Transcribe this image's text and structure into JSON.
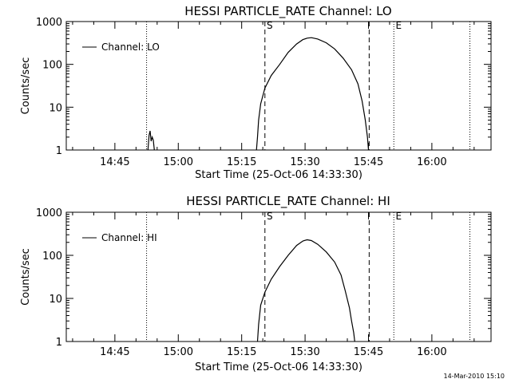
{
  "footer_stamp": "14-Mar-2010 15:10",
  "chart_data": [
    {
      "type": "line",
      "title": "HESSI PARTICLE_RATE Channel: LO",
      "xlabel": "Start Time (25-Oct-06 14:33:30)",
      "ylabel": "Counts/sec",
      "y_scale": "log",
      "ylim": [
        1,
        1000
      ],
      "xlim": [
        "14:33:30",
        "16:14:00"
      ],
      "x_ticks": [
        "14:45",
        "15:00",
        "15:15",
        "15:30",
        "15:45",
        "16:00"
      ],
      "y_ticks": [
        "1",
        "10",
        "100",
        "1000"
      ],
      "legend": "Channel: LO",
      "legend_position": "top-left",
      "markers": [
        {
          "time": "14:52:30",
          "style": "dotted",
          "label": ""
        },
        {
          "time": "15:20:30",
          "style": "dashed",
          "label": "S"
        },
        {
          "time": "15:45:10",
          "style": "dashed",
          "label": ""
        },
        {
          "time": "15:51:00",
          "style": "dotted",
          "label": "E"
        },
        {
          "time": "16:09:00",
          "style": "dotted",
          "label": ""
        }
      ],
      "series": [
        {
          "name": "Channel: LO",
          "segments": [
            [
              [
                "14:52:50",
                1
              ],
              [
                "14:53:05",
                2.2
              ],
              [
                "14:53:20",
                2.8
              ],
              [
                "14:53:35",
                1.6
              ],
              [
                "14:53:50",
                2.0
              ],
              [
                "14:54:05",
                1.7
              ],
              [
                "14:54:20",
                1
              ]
            ],
            [
              [
                "15:18:30",
                1
              ],
              [
                "15:18:45",
                2
              ],
              [
                "15:19:00",
                5
              ],
              [
                "15:19:30",
                12
              ],
              [
                "15:20:30",
                28
              ],
              [
                "15:22:00",
                55
              ],
              [
                "15:24:00",
                100
              ],
              [
                "15:26:00",
                190
              ],
              [
                "15:28:00",
                300
              ],
              [
                "15:29:30",
                380
              ],
              [
                "15:30:30",
                410
              ],
              [
                "15:31:30",
                420
              ],
              [
                "15:33:00",
                390
              ],
              [
                "15:35:00",
                320
              ],
              [
                "15:37:00",
                230
              ],
              [
                "15:39:00",
                140
              ],
              [
                "15:41:00",
                75
              ],
              [
                "15:42:30",
                35
              ],
              [
                "15:43:30",
                14
              ],
              [
                "15:44:15",
                5
              ],
              [
                "15:44:45",
                2
              ],
              [
                "15:45:00",
                1
              ]
            ]
          ]
        }
      ]
    },
    {
      "type": "line",
      "title": "HESSI PARTICLE_RATE Channel: HI",
      "xlabel": "Start Time (25-Oct-06 14:33:30)",
      "ylabel": "Counts/sec",
      "y_scale": "log",
      "ylim": [
        1,
        1000
      ],
      "xlim": [
        "14:33:30",
        "16:14:00"
      ],
      "x_ticks": [
        "14:45",
        "15:00",
        "15:15",
        "15:30",
        "15:45",
        "16:00"
      ],
      "y_ticks": [
        "1",
        "10",
        "100",
        "1000"
      ],
      "legend": "Channel: HI",
      "legend_position": "top-left",
      "markers": [
        {
          "time": "14:52:30",
          "style": "dotted",
          "label": ""
        },
        {
          "time": "15:20:30",
          "style": "dashed",
          "label": "S"
        },
        {
          "time": "15:45:10",
          "style": "dashed",
          "label": ""
        },
        {
          "time": "15:51:00",
          "style": "dotted",
          "label": "E"
        },
        {
          "time": "16:09:00",
          "style": "dotted",
          "label": ""
        }
      ],
      "series": [
        {
          "name": "Channel: HI",
          "segments": [
            [
              [
                "15:18:45",
                1
              ],
              [
                "15:19:00",
                2.5
              ],
              [
                "15:19:30",
                7
              ],
              [
                "15:20:30",
                14
              ],
              [
                "15:22:00",
                28
              ],
              [
                "15:24:00",
                55
              ],
              [
                "15:26:00",
                100
              ],
              [
                "15:28:00",
                170
              ],
              [
                "15:29:30",
                215
              ],
              [
                "15:30:30",
                230
              ],
              [
                "15:31:30",
                220
              ],
              [
                "15:33:00",
                180
              ],
              [
                "15:35:00",
                120
              ],
              [
                "15:37:00",
                70
              ],
              [
                "15:38:30",
                35
              ],
              [
                "15:39:30",
                15
              ],
              [
                "15:40:30",
                6
              ],
              [
                "15:41:00",
                3
              ],
              [
                "15:41:30",
                1.6
              ],
              [
                "15:41:45",
                1
              ]
            ]
          ]
        }
      ]
    }
  ]
}
